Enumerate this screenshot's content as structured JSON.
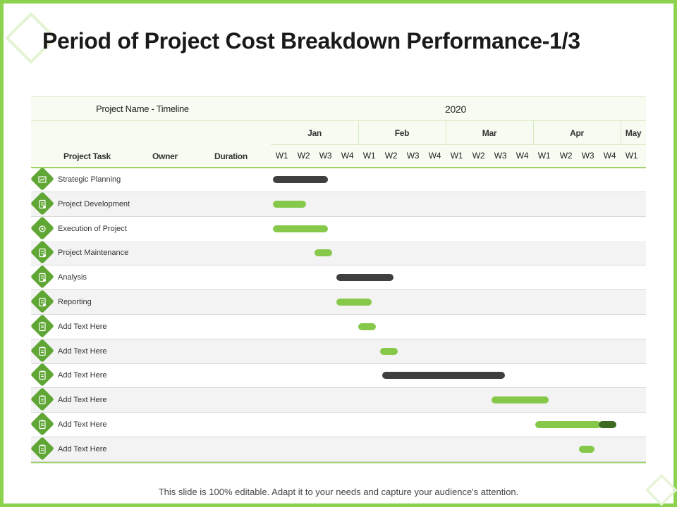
{
  "title": "Period of Project Cost Breakdown Performance-1/3",
  "header": {
    "timeline_label": "Project Name - Timeline",
    "year": "2020",
    "task_col": "Project Task",
    "owner_col": "Owner",
    "duration_col": "Duration",
    "months": [
      "Jan",
      "Feb",
      "Mar",
      "Apr",
      "May"
    ],
    "weeks": [
      "W1",
      "W2",
      "W3",
      "W4",
      "W1",
      "W2",
      "W3",
      "W4",
      "W1",
      "W2",
      "W3",
      "W4",
      "W1",
      "W2",
      "W3",
      "W4",
      "W1"
    ]
  },
  "tasks": [
    {
      "label": "Strategic Planning",
      "icon": "strategy-icon",
      "bars": [
        {
          "start": 0.1,
          "end": 2.6,
          "color": "dark"
        }
      ]
    },
    {
      "label": "Project Development",
      "icon": "development-icon",
      "bars": [
        {
          "start": 0.1,
          "end": 1.6,
          "color": "green"
        }
      ]
    },
    {
      "label": "Execution of Project",
      "icon": "execution-icon",
      "bars": [
        {
          "start": 0.1,
          "end": 2.6,
          "color": "green"
        }
      ]
    },
    {
      "label": "Project Maintenance",
      "icon": "maintenance-icon",
      "bars": [
        {
          "start": 2.0,
          "end": 2.8,
          "color": "green"
        }
      ]
    },
    {
      "label": "Analysis",
      "icon": "analysis-icon",
      "bars": [
        {
          "start": 3.0,
          "end": 5.6,
          "color": "dark"
        }
      ]
    },
    {
      "label": "Reporting",
      "icon": "report-icon",
      "bars": [
        {
          "start": 3.0,
          "end": 4.6,
          "color": "green"
        }
      ]
    },
    {
      "label": "Add Text Here",
      "icon": "clipboard-icon",
      "bars": [
        {
          "start": 4.0,
          "end": 4.8,
          "color": "green"
        }
      ]
    },
    {
      "label": "Add Text Here",
      "icon": "clipboard-icon",
      "bars": [
        {
          "start": 5.0,
          "end": 5.8,
          "color": "green"
        }
      ]
    },
    {
      "label": "Add Text Here",
      "icon": "clipboard-icon",
      "bars": [
        {
          "start": 5.1,
          "end": 10.7,
          "color": "dark"
        }
      ]
    },
    {
      "label": "Add Text Here",
      "icon": "clipboard-icon",
      "bars": [
        {
          "start": 10.1,
          "end": 12.7,
          "color": "green"
        }
      ]
    },
    {
      "label": "Add Text Here",
      "icon": "clipboard-icon",
      "bars": [
        {
          "start": 12.1,
          "end": 15.1,
          "color": "green"
        },
        {
          "start": 15.0,
          "end": 15.8,
          "color": "deep"
        }
      ]
    },
    {
      "label": "Add Text Here",
      "icon": "clipboard-icon",
      "bars": [
        {
          "start": 14.1,
          "end": 14.8,
          "color": "green"
        }
      ]
    }
  ],
  "footer": "This slide is 100% editable. Adapt it to your needs and capture your audience's attention.",
  "colors": {
    "accent": "#8cd24e",
    "green_bar": "#86c94a",
    "dark_bar": "#3f3f3f",
    "deep_bar": "#3d6b22",
    "icon_bg": "#5fa635"
  }
}
